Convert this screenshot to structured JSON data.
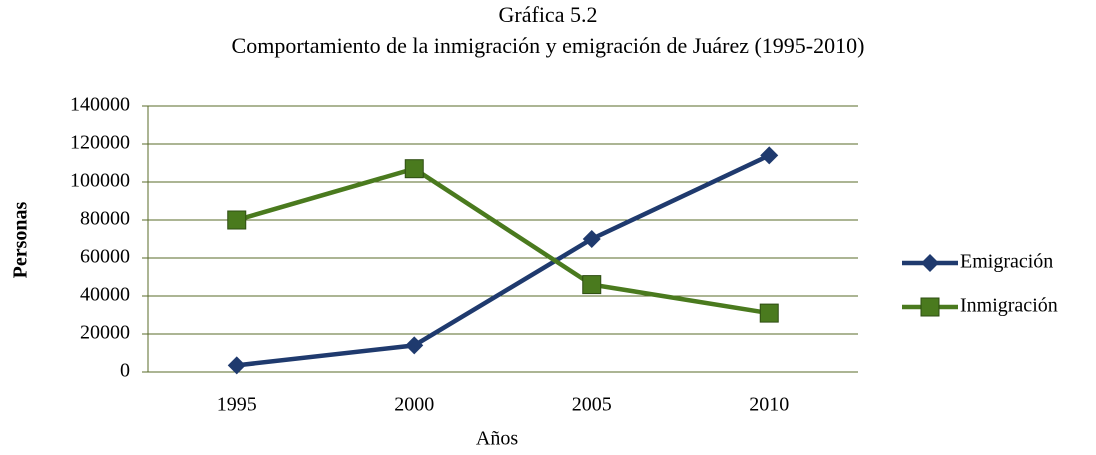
{
  "chart_data": {
    "type": "line",
    "title": "Gráfica 5.2",
    "subtitle": "Comportamiento de la inmigración y emigración de Juárez (1995-2010)",
    "x_label": "Años",
    "y_label": "Personas",
    "categories": [
      "1995",
      "2000",
      "2005",
      "2010"
    ],
    "series": [
      {
        "name": "Emigración",
        "color": "#1f3a6e",
        "marker": "diamond",
        "values": [
          3500,
          14000,
          70000,
          114000
        ]
      },
      {
        "name": "Inmigración",
        "color": "#4a7a1e",
        "marker": "square",
        "values": [
          80000,
          107000,
          46000,
          31000
        ]
      }
    ],
    "ylim": [
      0,
      140000
    ],
    "yticks": [
      0,
      20000,
      40000,
      60000,
      80000,
      100000,
      120000,
      140000
    ],
    "grid": true,
    "legend": "right"
  }
}
